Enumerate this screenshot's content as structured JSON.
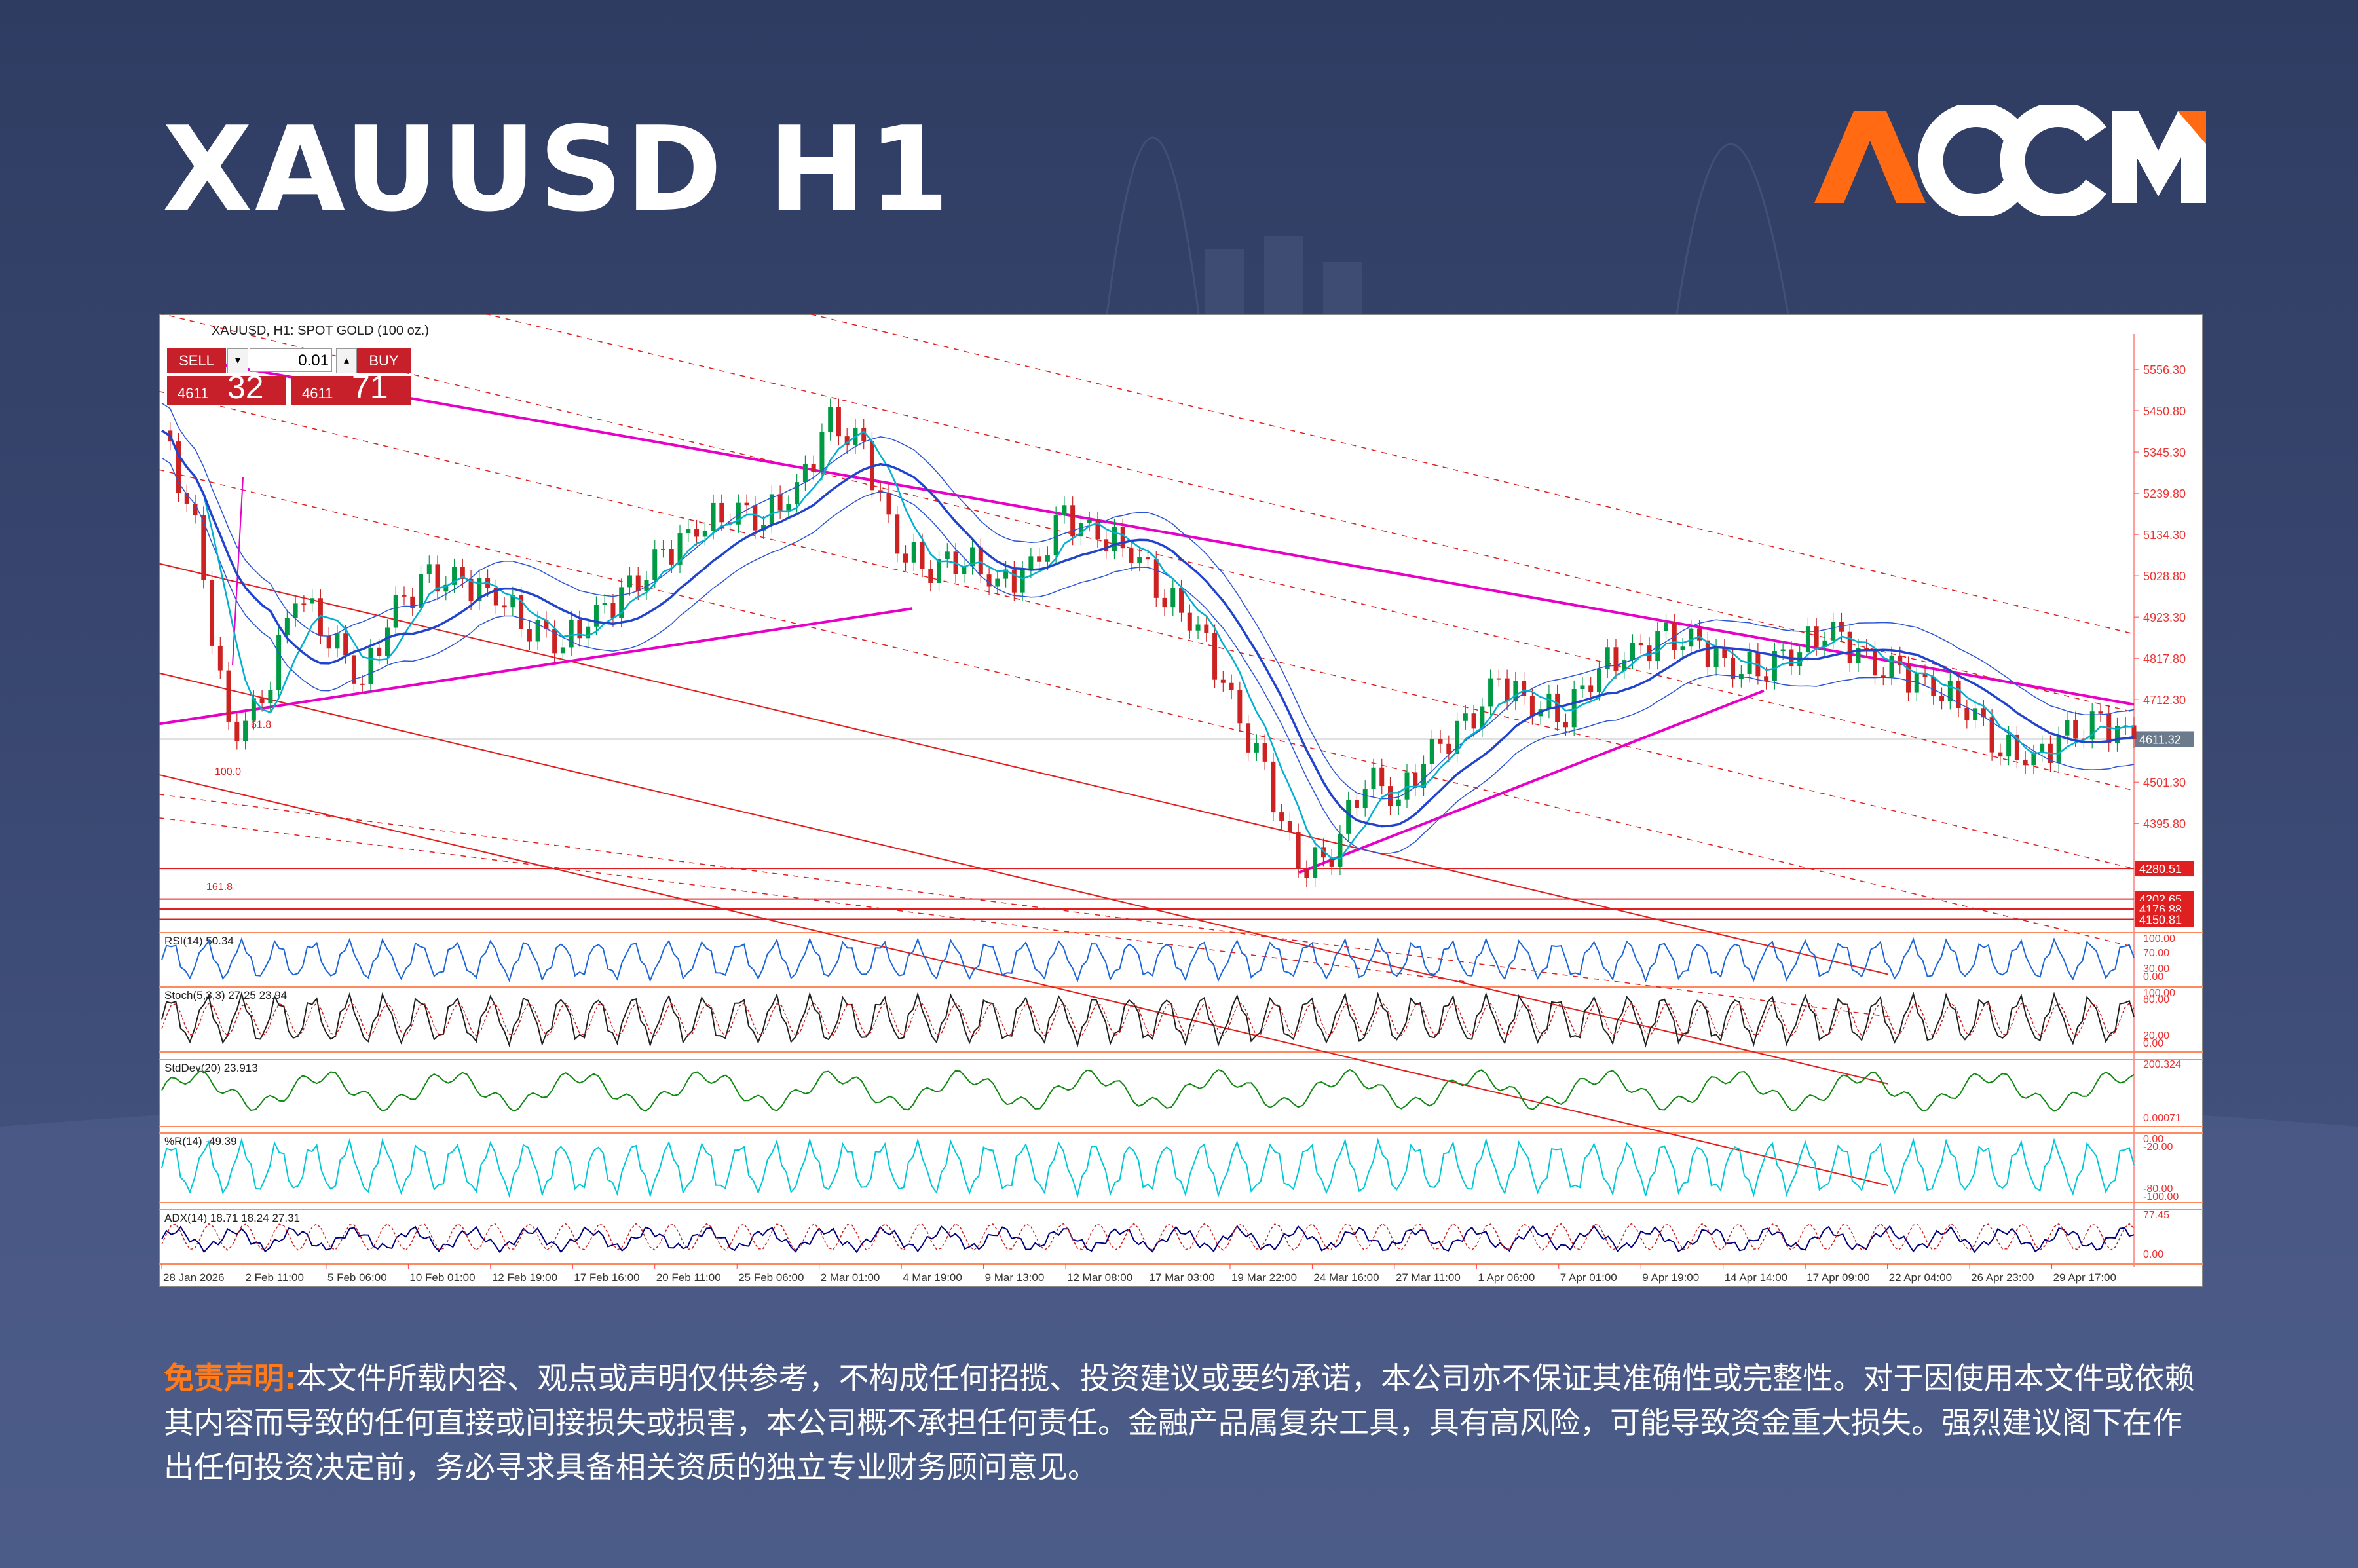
{
  "header": {
    "title": "XAUUSD H1",
    "brand": "ACCM",
    "brand_colors": {
      "orange": "#ff6a13",
      "white": "#ffffff"
    }
  },
  "chart_header": {
    "symbol_line": "XAUUSD, H1: SPOT GOLD (100 oz.)",
    "sell_label": "SELL",
    "buy_label": "BUY",
    "lot": "0.01",
    "sell_small": "4611",
    "sell_big": "32",
    "buy_small": "4611",
    "buy_big": "71"
  },
  "disclaimer": {
    "label": "免责声明:",
    "text": "本文件所载内容、观点或声明仅供参考，不构成任何招揽、投资建议或要约承诺，本公司亦不保证其准确性或完整性。对于因使用本文件或依赖其内容而导致的任何直接或间接损失或损害，本公司概不承担任何责任。金融产品属复杂工具，具有高风险，可能导致资金重大损失。强烈建议阁下在作出任何投资决定前，务必寻求具备相关资质的独立专业财务顾问意见。"
  },
  "chart_data": {
    "type": "line",
    "title": "XAUUSD H1",
    "ylim": [
      4140,
      5630
    ],
    "yticks": [
      "5556.30",
      "5450.80",
      "5345.30",
      "5239.80",
      "5134.30",
      "5028.80",
      "4923.30",
      "4817.80",
      "4712.30",
      "4501.30",
      "4395.80"
    ],
    "level_labels": [
      "4611.32",
      "4280.51",
      "4202.65",
      "4176.88",
      "4150.81"
    ],
    "fib_labels": [
      "61.8",
      "100.0",
      "161.8"
    ],
    "xtick_labels": [
      "28 Jan 2026",
      "2 Feb 11:00",
      "5 Feb 06:00",
      "10 Feb 01:00",
      "12 Feb 19:00",
      "17 Feb 16:00",
      "20 Feb 11:00",
      "25 Feb 06:00",
      "2 Mar 01:00",
      "4 Mar 19:00",
      "9 Mar 13:00",
      "12 Mar 08:00",
      "17 Mar 03:00",
      "19 Mar 22:00",
      "24 Mar 16:00",
      "27 Mar 11:00",
      "1 Apr 06:00",
      "7 Apr 01:00",
      "9 Apr 19:00",
      "14 Apr 14:00",
      "17 Apr 09:00",
      "22 Apr 04:00",
      "26 Apr 23:00",
      "29 Apr 17:00"
    ],
    "series": [
      {
        "name": "price",
        "values": [
          5400,
          5150,
          4620,
          4700,
          4990,
          4880,
          4760,
          4950,
          5020,
          5010,
          4980,
          4900,
          4860,
          4930,
          4990,
          5080,
          5150,
          5200,
          5180,
          5250,
          5420,
          5350,
          5100,
          5050,
          5080,
          5010,
          5040,
          5180,
          5130,
          5100,
          4980,
          4900,
          4700,
          4520,
          4280,
          4320,
          4520,
          4460,
          4580,
          4640,
          4760,
          4700,
          4680,
          4800,
          4830,
          4870,
          4850,
          4790,
          4800,
          4850,
          4890,
          4800,
          4780,
          4740,
          4700,
          4590,
          4560,
          4620,
          4650,
          4611
        ]
      }
    ],
    "indicators": [
      {
        "name": "RSI(14) 50.34",
        "ticks": [
          "100.00",
          "70.00",
          "30.00",
          "0.00"
        ]
      },
      {
        "name": "Stoch(5,3,3) 27.25 23.94",
        "ticks": [
          "100.00",
          "80.00",
          "20.00",
          "0.00"
        ]
      },
      {
        "name": "StdDev(20) 23.913",
        "ticks": [
          "200.324",
          "0.00071"
        ]
      },
      {
        "name": "%R(14) -49.39",
        "ticks": [
          "0.00",
          "-20.00",
          "-80.00",
          "-100.00"
        ]
      },
      {
        "name": "ADX(14) 18.71 18.24 27.31",
        "ticks": [
          "77.45",
          "0.00"
        ]
      }
    ],
    "colors": {
      "trend": "#e600c8",
      "channel": "#e02020",
      "ma_blue": "#2244cc",
      "ma_cyan": "#00b0d0",
      "band": "#2b55d6",
      "rsi": "#1e66d8",
      "stdev": "#118811",
      "wpr": "#00c8d8",
      "adx_main": "#000080",
      "up": "#009944",
      "down": "#cc2222"
    },
    "grid": false,
    "legend": "none"
  }
}
